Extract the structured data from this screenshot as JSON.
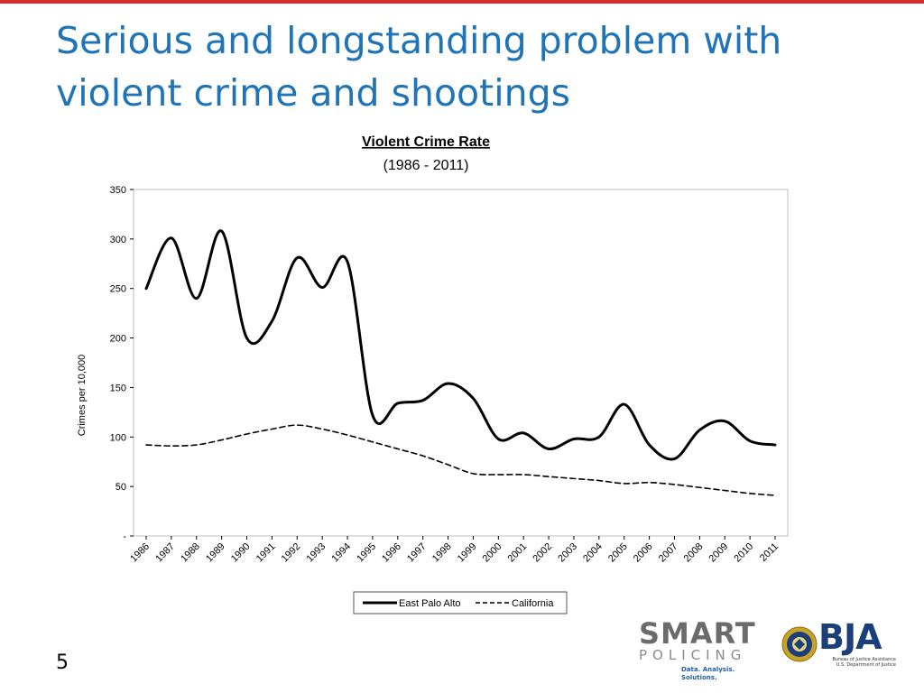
{
  "slide": {
    "title_line1": "Serious and longstanding problem with",
    "title_line2": "violent crime and shootings",
    "page_number": "5",
    "accent_color": "#d32f2f",
    "title_color": "#1f74b8"
  },
  "logos": {
    "smart_word": "SMART",
    "policing_word": "POLICING",
    "tagline": "Data. Analysis. Solutions.",
    "bja_word": "BJA",
    "bja_sub_line1": "Bureau of Justice Assistance",
    "bja_sub_line2": "U.S. Department of Justice"
  },
  "chart_data": {
    "type": "line",
    "title": "Violent Crime Rate",
    "subtitle": "(1986 - 2011)",
    "ylabel": "Crimes per 10,000",
    "xlabel": "",
    "x": [
      "1986",
      "1987",
      "1988",
      "1989",
      "1990",
      "1991",
      "1992",
      "1993",
      "1994",
      "1995",
      "1996",
      "1997",
      "1998",
      "1999",
      "2000",
      "2001",
      "2002",
      "2003",
      "2004",
      "2005",
      "2006",
      "2007",
      "2008",
      "2009",
      "2010",
      "2011"
    ],
    "yticks": [
      "-",
      "50",
      "100",
      "150",
      "200",
      "250",
      "300",
      "350"
    ],
    "ylim": [
      0,
      350
    ],
    "grid": false,
    "legend_position": "bottom",
    "series": [
      {
        "name": "East Palo Alto",
        "style": "solid",
        "values": [
          250,
          301,
          240,
          308,
          200,
          217,
          281,
          251,
          277,
          122,
          134,
          137,
          154,
          139,
          98,
          104,
          88,
          98,
          100,
          133,
          92,
          78,
          107,
          116,
          96,
          92
        ]
      },
      {
        "name": "California",
        "style": "dashed",
        "values": [
          92,
          91,
          92,
          97,
          103,
          108,
          112,
          108,
          102,
          95,
          88,
          81,
          72,
          63,
          62,
          62,
          60,
          58,
          56,
          53,
          54,
          52,
          49,
          46,
          43,
          41
        ]
      }
    ]
  }
}
